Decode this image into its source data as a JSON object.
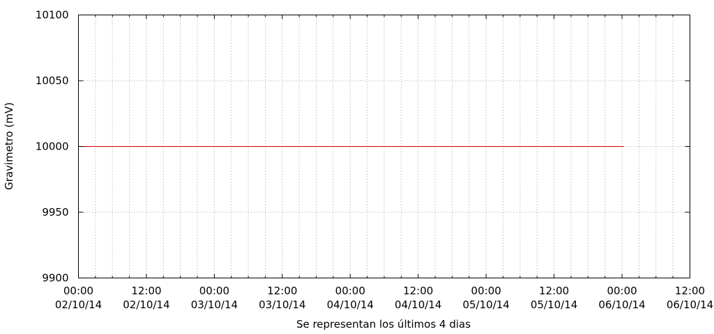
{
  "chart_data": {
    "type": "line",
    "title": "",
    "xlabel": "Se representan los últimos 4 dias",
    "ylabel": "Gravimetro (mV)",
    "ylim": [
      9900,
      10100
    ],
    "xlim": [
      "2014-10-02 00:00",
      "2014-10-06 12:00"
    ],
    "grid": true,
    "x_ticks": [
      {
        "time": "2014-10-02 00:00",
        "line1": "00:00",
        "line2": "02/10/14"
      },
      {
        "time": "2014-10-02 12:00",
        "line1": "12:00",
        "line2": "02/10/14"
      },
      {
        "time": "2014-10-03 00:00",
        "line1": "00:00",
        "line2": "03/10/14"
      },
      {
        "time": "2014-10-03 12:00",
        "line1": "12:00",
        "line2": "03/10/14"
      },
      {
        "time": "2014-10-04 00:00",
        "line1": "00:00",
        "line2": "04/10/14"
      },
      {
        "time": "2014-10-04 12:00",
        "line1": "12:00",
        "line2": "04/10/14"
      },
      {
        "time": "2014-10-05 00:00",
        "line1": "00:00",
        "line2": "05/10/14"
      },
      {
        "time": "2014-10-05 12:00",
        "line1": "12:00",
        "line2": "05/10/14"
      },
      {
        "time": "2014-10-06 00:00",
        "line1": "00:00",
        "line2": "06/10/14"
      },
      {
        "time": "2014-10-06 12:00",
        "line1": "12:00",
        "line2": "06/10/14"
      }
    ],
    "y_ticks": [
      "9900",
      "9950",
      "10000",
      "10050",
      "10100"
    ],
    "series": [
      {
        "color": "#cc0000",
        "points": [
          {
            "x": "2014-10-02 00:00",
            "y": 10000
          },
          {
            "x": "2014-10-06 00:20",
            "y": 10000
          }
        ]
      }
    ]
  }
}
